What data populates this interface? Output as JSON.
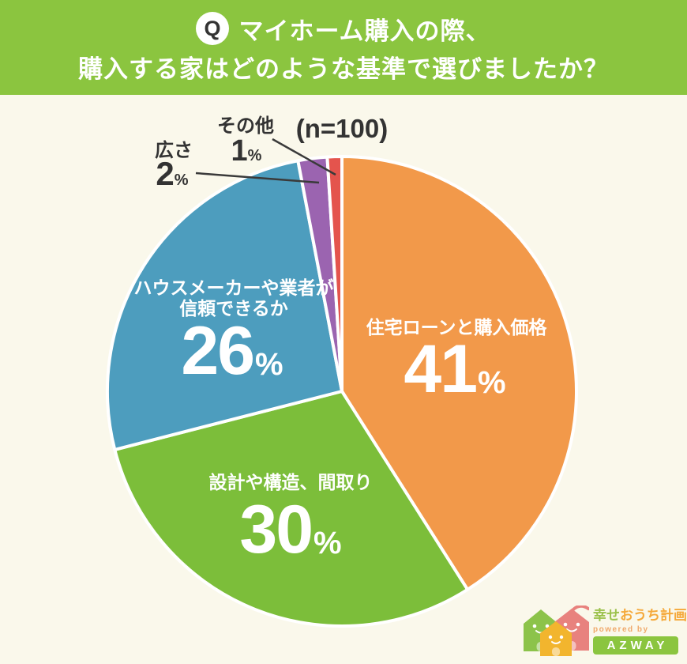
{
  "header": {
    "q_badge": "Q",
    "title_line1": "マイホーム購入の際、",
    "title_line2": "購入する家はどのような基準で選びましたか？"
  },
  "survey": {
    "sample_size_label": "(n=100)"
  },
  "ui": {
    "percent_sign": "%"
  },
  "chart_data": {
    "type": "pie",
    "title": "マイホーム購入の際、購入する家はどのような基準で選びましたか？",
    "sample_size": 100,
    "direction": "clockwise",
    "start_angle_deg": 0,
    "legend_position": "on-slices",
    "segments": [
      {
        "label": "住宅ローンと購入価格",
        "value": 41,
        "color": "#F2994A",
        "label_lines": [
          "住宅ローンと購入価格"
        ]
      },
      {
        "label": "設計や構造、間取り",
        "value": 30,
        "color": "#7CBE3A",
        "label_lines": [
          "設計や構造、間取り"
        ]
      },
      {
        "label": "ハウスメーカーや業者が信頼できるか",
        "value": 26,
        "color": "#4D9DBE",
        "label_lines": [
          "ハウスメーカーや業者が",
          "信頼できるか"
        ]
      },
      {
        "label": "広さ",
        "value": 2,
        "color": "#9B64B0",
        "label_lines": [
          "広さ"
        ]
      },
      {
        "label": "その他",
        "value": 1,
        "color": "#E4544D",
        "label_lines": [
          "その他"
        ]
      }
    ]
  },
  "logo": {
    "brand_part1": "幸せ",
    "brand_part2": "おうち計画",
    "powered_by": "powered by",
    "company": "AZWAY"
  },
  "colors": {
    "header_bg": "#8BC53F",
    "background": "#FAF8EB",
    "text_dark": "#333333",
    "label_text_on_slice": "#FFFFFF"
  }
}
